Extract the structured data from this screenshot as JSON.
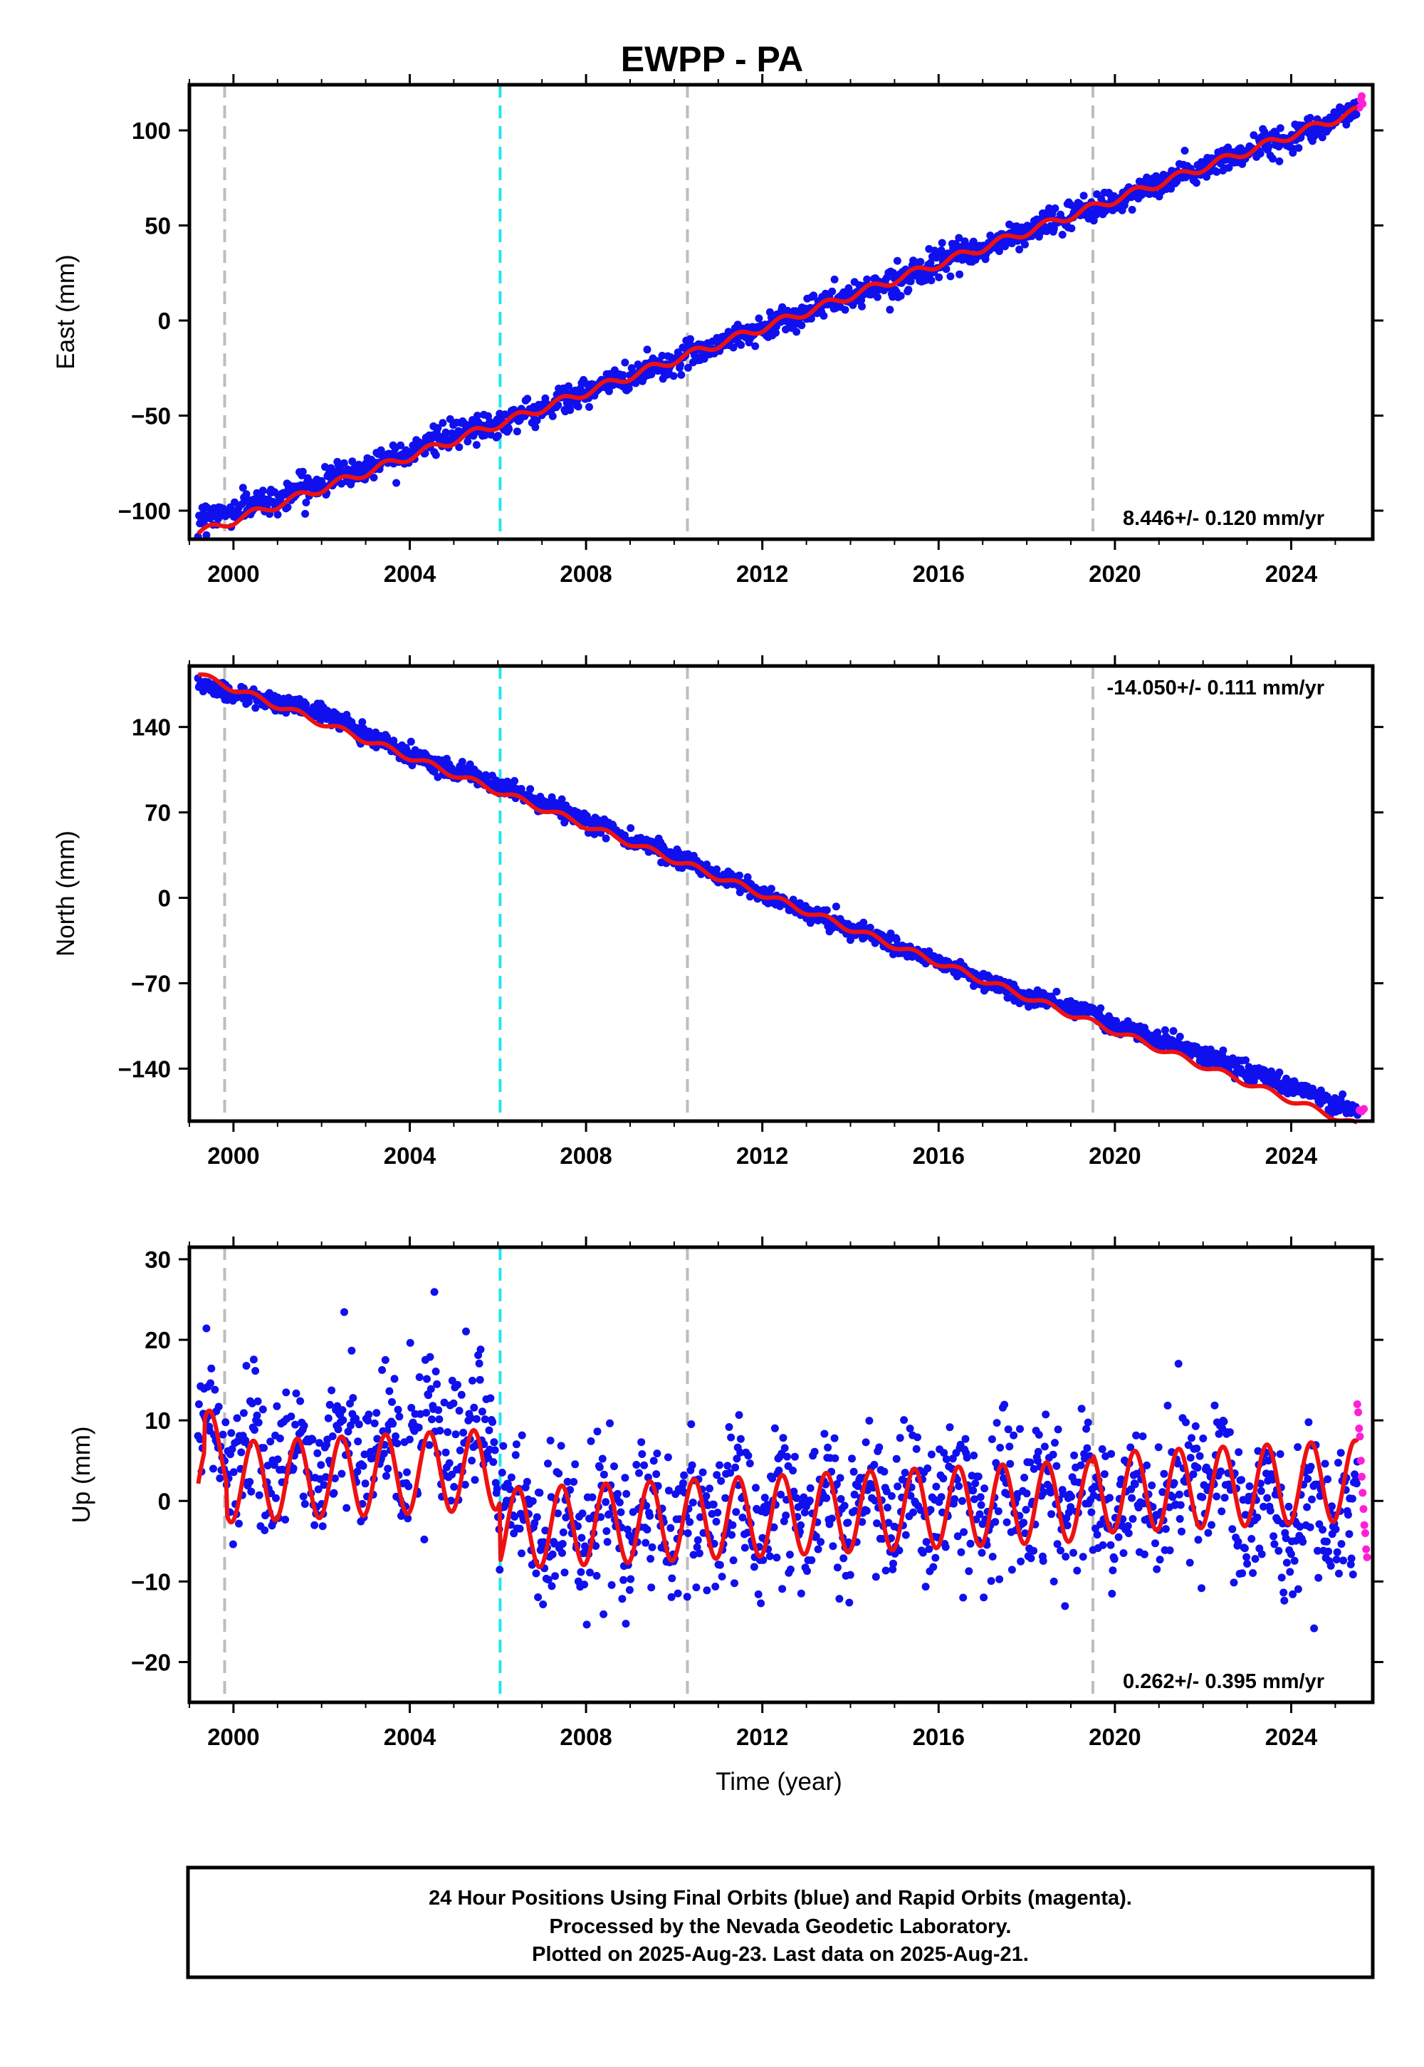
{
  "title": "EWPP - PA",
  "colors": {
    "final_orbits": "#1010ee",
    "rapid_orbits": "#ff1fd6",
    "model": "#ee1111",
    "antenna_change": "#22e6ee",
    "equipment_change": "#bdbdbd",
    "frame": "#000000"
  },
  "x_axis": {
    "label": "Time (year)",
    "range": [
      1999.0,
      2025.85
    ],
    "ticks": [
      2000,
      2004,
      2008,
      2012,
      2016,
      2020,
      2024
    ],
    "tick_labels": [
      "2000",
      "2004",
      "2008",
      "2012",
      "2016",
      "2020",
      "2024"
    ]
  },
  "events": [
    {
      "year": 1999.8,
      "type": "equipment"
    },
    {
      "year": 2006.05,
      "type": "antenna"
    },
    {
      "year": 2010.3,
      "type": "equipment"
    },
    {
      "year": 2019.5,
      "type": "equipment"
    }
  ],
  "footer": {
    "line1": "24 Hour Positions Using Final Orbits (blue) and Rapid Orbits (magenta).",
    "line2": "Processed by the Nevada Geodetic Laboratory.",
    "line3": "Plotted on 2025-Aug-23. Last data on 2025-Aug-21."
  },
  "chart_data": [
    {
      "type": "scatter",
      "component": "east",
      "ylabel": "East (mm)",
      "ylim": [
        -115,
        124
      ],
      "yticks": [
        -100,
        -50,
        0,
        50,
        100
      ],
      "ytick_labels": [
        "−100",
        "−50",
        "0",
        "50",
        "100"
      ],
      "rate_text": "8.446+/- 0.120 mm/yr",
      "rate_position": "bottom-right",
      "final_series": {
        "name": "Final Orbits",
        "x": [
          1999.2,
          2000.0,
          2001.0,
          2002.0,
          2003.0,
          2004.0,
          2005.0,
          2006.0,
          2007.0,
          2008.0,
          2009.0,
          2010.0,
          2011.0,
          2012.0,
          2013.0,
          2014.0,
          2015.0,
          2016.0,
          2017.0,
          2018.0,
          2019.0,
          2020.0,
          2021.0,
          2022.0,
          2023.0,
          2024.0,
          2025.0,
          2025.5
        ],
        "y": [
          -104,
          -100,
          -93,
          -85,
          -77,
          -68,
          -60,
          -54,
          -46,
          -38,
          -29,
          -21,
          -12,
          -4,
          5,
          13,
          21,
          30,
          38,
          47,
          55,
          63,
          72,
          80,
          89,
          97,
          106,
          111
        ],
        "scatter_mm": 3.5
      },
      "rapid_series": {
        "name": "Rapid Orbits",
        "x": [
          2025.55,
          2025.58,
          2025.6,
          2025.62
        ],
        "y": [
          112,
          116,
          118,
          114
        ]
      },
      "model": {
        "slope": 8.446,
        "intercept_year": 2012.0,
        "intercept": -3.9,
        "seasonal_amp": 2.2,
        "offsets": []
      }
    },
    {
      "type": "scatter",
      "component": "north",
      "ylabel": "North (mm)",
      "ylim": [
        -183,
        190
      ],
      "yticks": [
        -140,
        -70,
        0,
        70,
        140
      ],
      "ytick_labels": [
        "−140",
        "−70",
        "0",
        "70",
        "140"
      ],
      "rate_text": "-14.050+/- 0.111 mm/yr",
      "rate_position": "top-right",
      "final_series": {
        "name": "Final Orbits",
        "x": [
          1999.2,
          2000.0,
          2002.0,
          2004.0,
          2006.0,
          2008.0,
          2010.0,
          2012.0,
          2014.0,
          2016.0,
          2018.0,
          2019.5,
          2020.0,
          2022.0,
          2024.0,
          2025.5
        ],
        "y": [
          175,
          168,
          152,
          118,
          92,
          63,
          35,
          3,
          -25,
          -53,
          -82,
          -93,
          -104,
          -128,
          -155,
          -175
        ],
        "scatter_mm": 3.5
      },
      "rapid_series": {
        "name": "Rapid Orbits",
        "x": [
          2025.55,
          2025.6,
          2025.65
        ],
        "y": [
          -174,
          -175,
          -173
        ]
      },
      "model": {
        "slope": -14.05,
        "intercept_year": 2012.0,
        "intercept": 3.0,
        "seasonal_amp": 2.6,
        "offsets": []
      }
    },
    {
      "type": "scatter",
      "component": "up",
      "ylabel": "Up (mm)",
      "ylim": [
        -25,
        31.5
      ],
      "yticks": [
        -20,
        -10,
        0,
        10,
        20,
        30
      ],
      "ytick_labels": [
        "−20",
        "−10",
        "0",
        "10",
        "20",
        "30"
      ],
      "xlabel": "Time (year)",
      "rate_text": "0.262+/- 0.395 mm/yr",
      "rate_position": "bottom-right",
      "final_series": {
        "name": "Final Orbits",
        "x": [
          1999.2,
          2000.0,
          2002.0,
          2004.0,
          2005.9,
          2006.2,
          2008.0,
          2010.0,
          2012.0,
          2014.0,
          2016.0,
          2018.0,
          2019.4,
          2020.0,
          2022.0,
          2024.0,
          2025.5
        ],
        "y": [
          11,
          5,
          6,
          8,
          7,
          -3,
          -3,
          -2,
          -1,
          -1,
          0,
          0,
          0,
          -1,
          2,
          -3,
          -2
        ],
        "scatter_mm": 4.5
      },
      "rapid_series": {
        "name": "Rapid Orbits",
        "x": [
          2025.5,
          2025.52,
          2025.54,
          2025.56,
          2025.58,
          2025.6,
          2025.62,
          2025.64,
          2025.66,
          2025.68,
          2025.7,
          2025.72
        ],
        "y": [
          12,
          11,
          9,
          8,
          5,
          3,
          1,
          -1,
          -3,
          -4,
          -6,
          -7
        ]
      },
      "model": {
        "slope": 0.262,
        "intercept_year": 2012.0,
        "intercept": -1.0,
        "seasonal_amp": 5.0,
        "offsets": [
          {
            "start": 1999.2,
            "end": 2006.05,
            "value": 6.5
          },
          {
            "start": 1999.35,
            "end": 1999.85,
            "value": 4.0
          },
          {
            "start": 2006.05,
            "end": 2019.5,
            "value": -0.9
          }
        ]
      }
    }
  ]
}
